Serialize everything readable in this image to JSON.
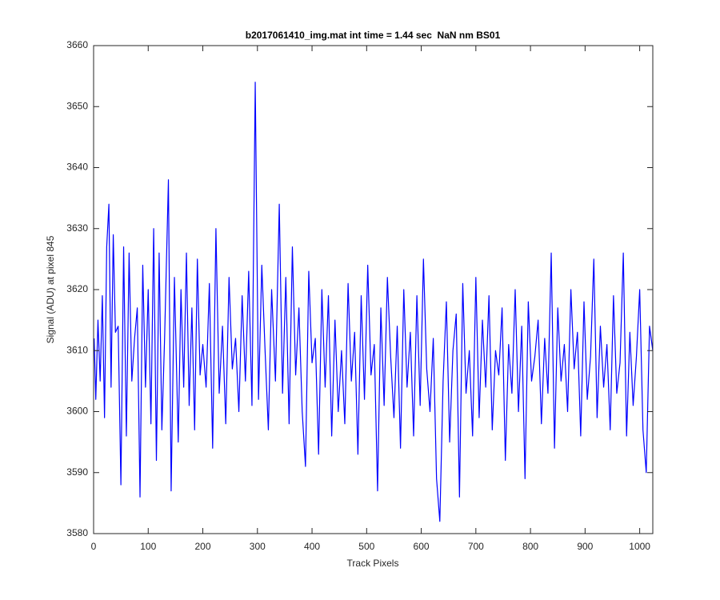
{
  "chart_data": {
    "type": "line",
    "title": "b2017061410_img.mat int time = 1.44 sec  NaN nm BS01",
    "xlabel": "Track Pixels",
    "ylabel": "Signal (ADU) at pixel 845",
    "color": "#0000ff",
    "xlim": [
      0,
      1024
    ],
    "ylim": [
      3580,
      3660
    ],
    "xticks": [
      0,
      100,
      200,
      300,
      400,
      500,
      600,
      700,
      800,
      900,
      1000
    ],
    "yticks": [
      3580,
      3590,
      3600,
      3610,
      3620,
      3630,
      3640,
      3650,
      3660
    ],
    "x": [
      1,
      4,
      8,
      12,
      16,
      20,
      24,
      28,
      32,
      36,
      40,
      45,
      50,
      55,
      60,
      65,
      70,
      75,
      80,
      85,
      90,
      95,
      100,
      105,
      110,
      115,
      120,
      125,
      130,
      137,
      142,
      148,
      155,
      160,
      165,
      170,
      175,
      180,
      185,
      190,
      195,
      200,
      206,
      212,
      218,
      224,
      230,
      236,
      242,
      248,
      254,
      260,
      266,
      272,
      278,
      284,
      290,
      296,
      302,
      308,
      314,
      320,
      326,
      333,
      340,
      346,
      352,
      358,
      364,
      370,
      376,
      382,
      388,
      394,
      400,
      406,
      412,
      418,
      424,
      430,
      436,
      442,
      448,
      454,
      460,
      466,
      472,
      478,
      484,
      490,
      496,
      502,
      508,
      514,
      520,
      526,
      532,
      538,
      544,
      550,
      556,
      562,
      568,
      574,
      580,
      586,
      592,
      598,
      604,
      610,
      616,
      622,
      628,
      634,
      640,
      646,
      652,
      658,
      664,
      670,
      676,
      682,
      688,
      694,
      700,
      706,
      712,
      718,
      724,
      730,
      736,
      742,
      748,
      754,
      760,
      766,
      772,
      778,
      784,
      790,
      796,
      802,
      808,
      814,
      820,
      826,
      832,
      838,
      844,
      850,
      856,
      862,
      868,
      874,
      880,
      886,
      892,
      898,
      904,
      910,
      916,
      922,
      928,
      934,
      940,
      946,
      952,
      958,
      964,
      970,
      976,
      982,
      988,
      994,
      1000,
      1006,
      1012,
      1018,
      1024
    ],
    "values": [
      3612,
      3602,
      3615,
      3605,
      3619,
      3599,
      3627,
      3634,
      3604,
      3629,
      3613,
      3614,
      3588,
      3627,
      3596,
      3626,
      3605,
      3612,
      3617,
      3586,
      3624,
      3604,
      3620,
      3598,
      3630,
      3592,
      3626,
      3597,
      3612,
      3638,
      3587,
      3622,
      3595,
      3620,
      3604,
      3626,
      3601,
      3617,
      3597,
      3625,
      3606,
      3611,
      3604,
      3621,
      3594,
      3630,
      3603,
      3614,
      3598,
      3622,
      3607,
      3612,
      3600,
      3619,
      3605,
      3623,
      3601,
      3654,
      3602,
      3624,
      3610,
      3597,
      3620,
      3605,
      3634,
      3603,
      3622,
      3598,
      3627,
      3606,
      3617,
      3600,
      3591,
      3623,
      3608,
      3612,
      3593,
      3620,
      3604,
      3619,
      3596,
      3615,
      3600,
      3610,
      3598,
      3621,
      3605,
      3613,
      3593,
      3619,
      3602,
      3624,
      3606,
      3611,
      3587,
      3617,
      3601,
      3622,
      3609,
      3599,
      3614,
      3594,
      3620,
      3604,
      3613,
      3596,
      3619,
      3601,
      3625,
      3607,
      3600,
      3612,
      3589,
      3582,
      3605,
      3618,
      3595,
      3610,
      3616,
      3586,
      3621,
      3603,
      3610,
      3596,
      3622,
      3599,
      3615,
      3604,
      3619,
      3597,
      3610,
      3606,
      3617,
      3592,
      3611,
      3603,
      3620,
      3600,
      3614,
      3589,
      3618,
      3605,
      3609,
      3615,
      3598,
      3612,
      3603,
      3626,
      3594,
      3617,
      3605,
      3611,
      3600,
      3620,
      3607,
      3613,
      3596,
      3618,
      3602,
      3609,
      3625,
      3599,
      3614,
      3604,
      3611,
      3597,
      3619,
      3603,
      3608,
      3626,
      3596,
      3613,
      3601,
      3609,
      3620,
      3597,
      3590,
      3614,
      3610
    ]
  }
}
